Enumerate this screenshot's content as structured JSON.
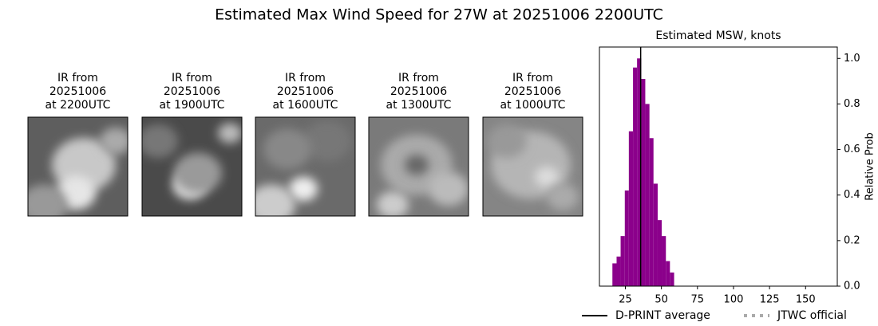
{
  "title": "Estimated Max Wind Speed for 27W at 20251006 2200UTC",
  "panels": [
    {
      "title_lines": [
        "IR from",
        "20251006",
        "at 2200UTC"
      ]
    },
    {
      "title_lines": [
        "IR from",
        "20251006",
        "at 1900UTC"
      ]
    },
    {
      "title_lines": [
        "IR from",
        "20251006",
        "at 1600UTC"
      ]
    },
    {
      "title_lines": [
        "IR from",
        "20251006",
        "at 1300UTC"
      ]
    },
    {
      "title_lines": [
        "IR from",
        "20251006",
        "at 1000UTC"
      ]
    }
  ],
  "chart_data": {
    "type": "histogram",
    "title": "Estimated MSW, knots",
    "y_label": "Relative Prob",
    "color": "#8b008b",
    "bins": [
      16.0,
      18.9,
      21.7,
      24.6,
      27.4,
      30.3,
      33.1,
      36.0,
      38.8,
      41.7,
      44.5,
      47.4,
      50.2,
      53.1,
      55.9,
      58.8
    ],
    "values": [
      0.1,
      0.13,
      0.22,
      0.42,
      0.68,
      0.96,
      1.0,
      0.91,
      0.8,
      0.65,
      0.45,
      0.29,
      0.22,
      0.11,
      0.06
    ],
    "xlim": [
      7,
      172
    ],
    "ylim": [
      0,
      1.05
    ],
    "xticks": [
      25,
      50,
      75,
      100,
      125,
      150
    ],
    "yticks": [
      {
        "value": 0,
        "label": "0.0"
      },
      {
        "value": 0.2,
        "label": "0.2"
      },
      {
        "value": 0.4,
        "label": "0.4"
      },
      {
        "value": 0.6,
        "label": "0.6"
      },
      {
        "value": 0.8,
        "label": "0.8"
      },
      {
        "value": 1,
        "label": "1.0"
      }
    ],
    "reference_lines": [
      {
        "name": "D-PRINT average",
        "value": 35.6,
        "color": "#000000"
      }
    ],
    "legend": [
      {
        "label": "D-PRINT average",
        "color": "#000000",
        "style": "solid"
      },
      {
        "label": "JTWC official",
        "color": "#aaaaaa",
        "style": "dotted"
      }
    ]
  }
}
